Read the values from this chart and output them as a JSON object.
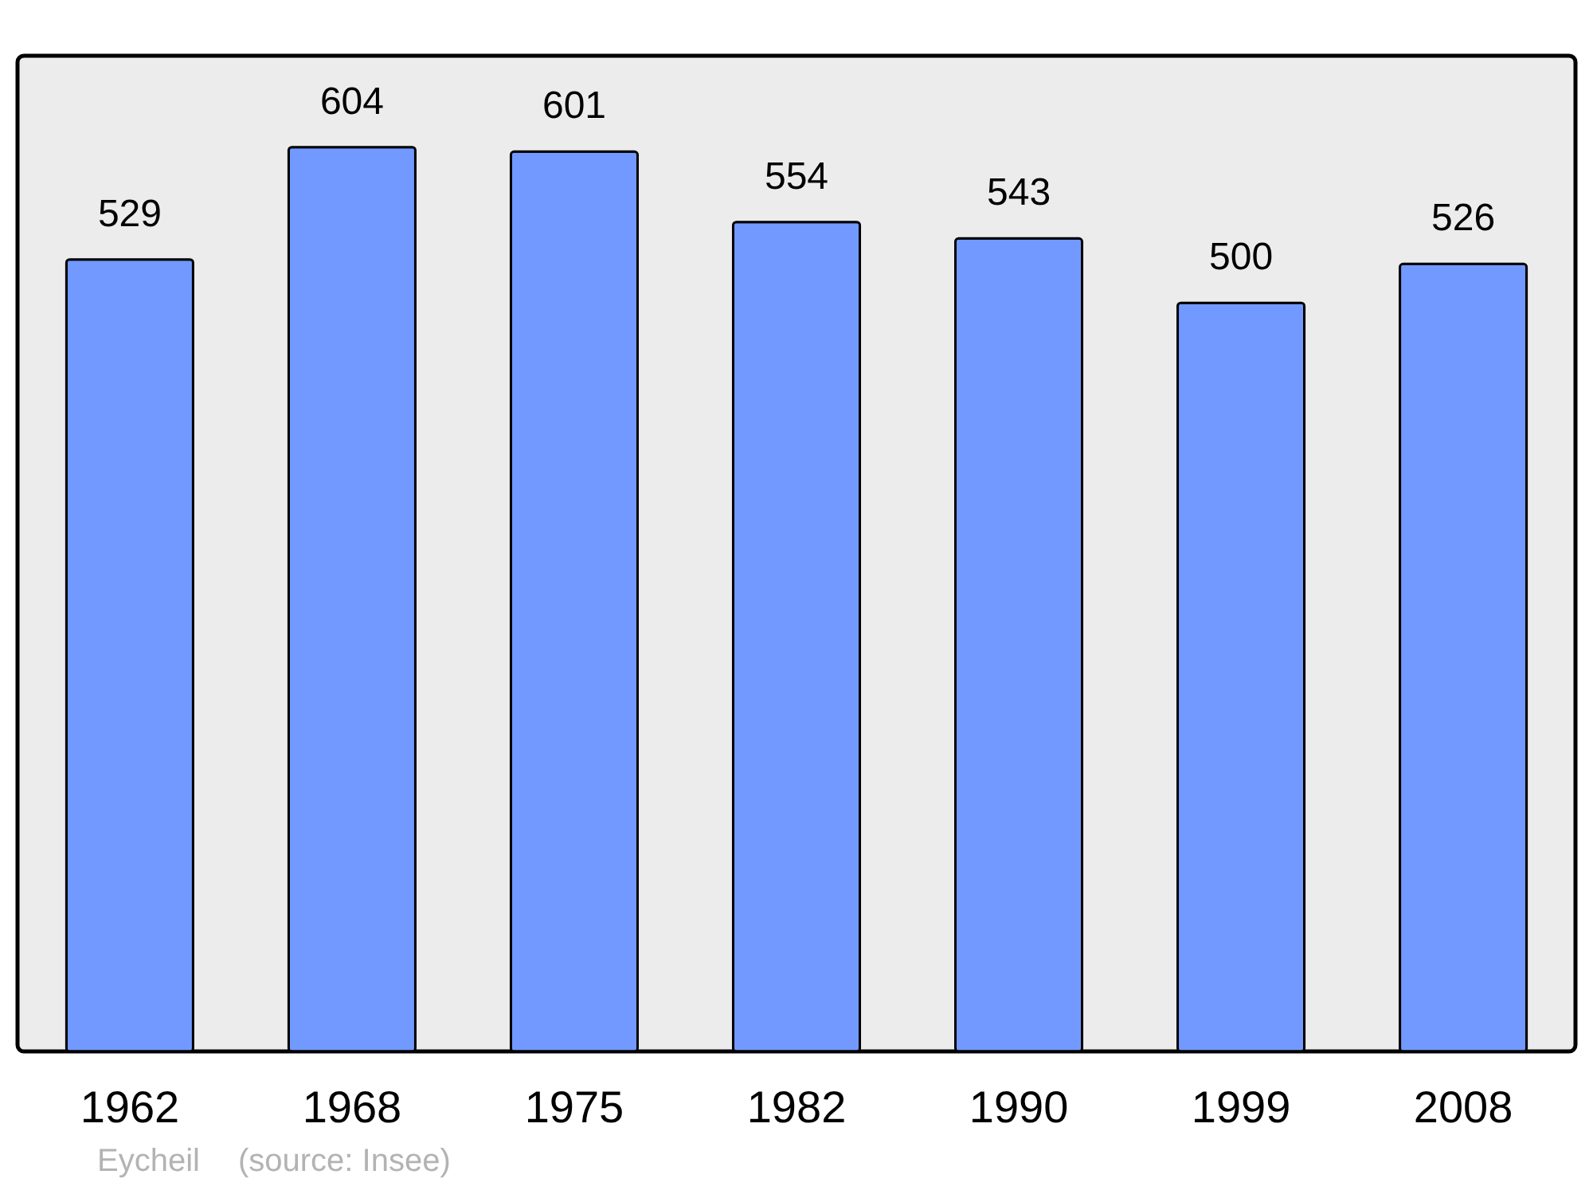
{
  "chart_data": {
    "type": "bar",
    "categories": [
      "1962",
      "1968",
      "1975",
      "1982",
      "1990",
      "1999",
      "2008"
    ],
    "values": [
      529,
      604,
      601,
      554,
      543,
      500,
      526
    ],
    "color": "#7299ff",
    "ylim": [
      0,
      665
    ],
    "data_labels": true,
    "annotations": [
      "Eycheil",
      "(source: Insee)"
    ]
  }
}
